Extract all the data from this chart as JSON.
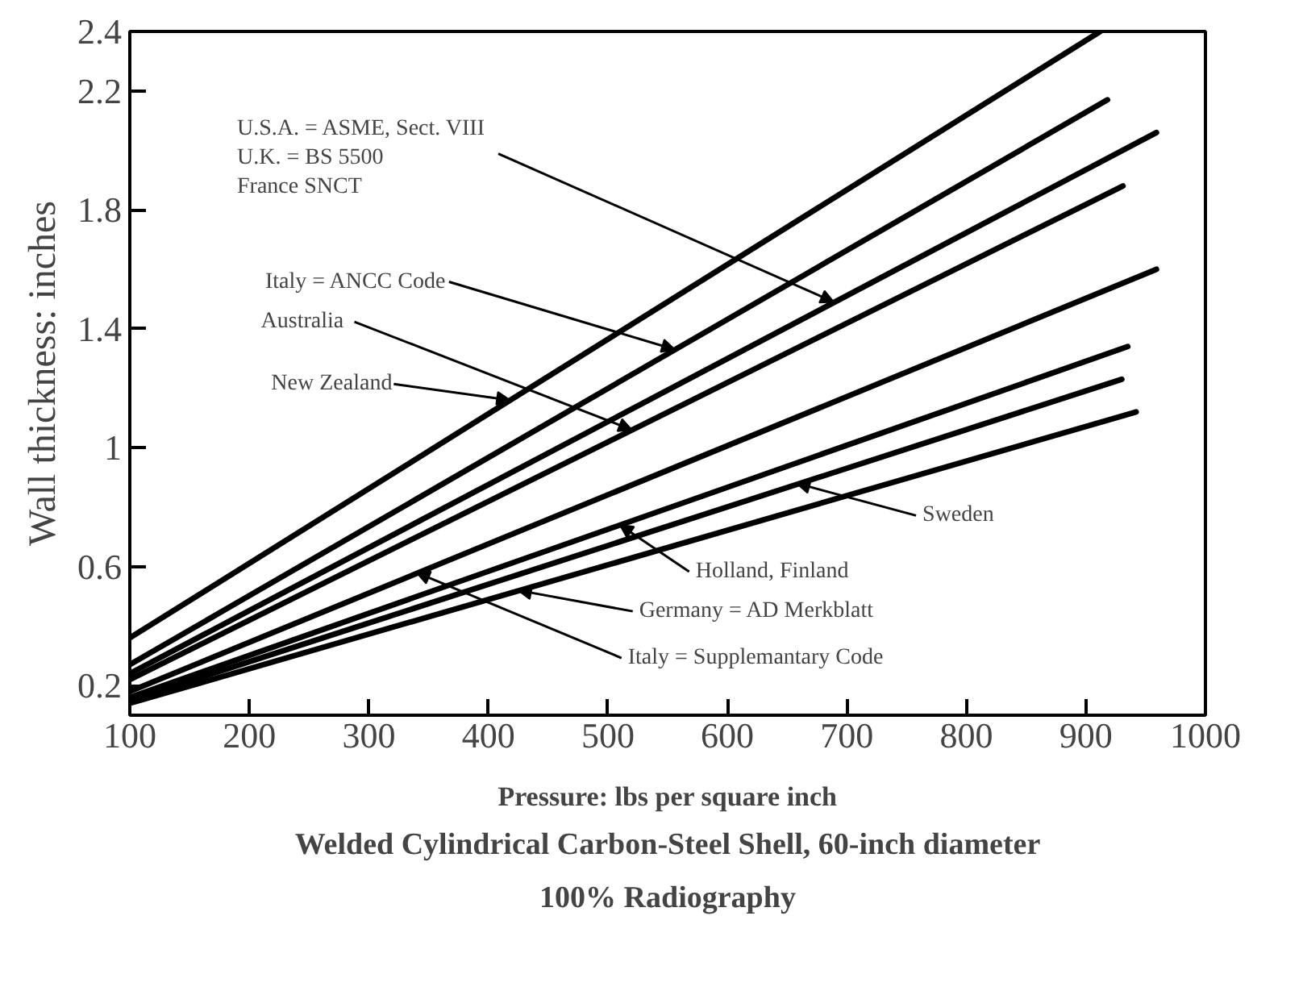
{
  "chart_data": {
    "type": "line",
    "title": "Welded Cylindrical Carbon-Steel Shell, 60-inch diameter",
    "subtitle": "100% Radiography",
    "xlabel": "Pressure: lbs per square inch",
    "ylabel": "Wall thickness: inches",
    "xlim": [
      100,
      1000
    ],
    "ylim": [
      0.1,
      2.4
    ],
    "xticks": [
      100,
      200,
      300,
      400,
      500,
      600,
      700,
      800,
      900,
      1000
    ],
    "yticks": [
      0.2,
      0.6,
      1.0,
      1.4,
      1.8,
      2.2,
      2.4
    ],
    "series": [
      {
        "color": "#000000",
        "x": [
          100,
          912
        ],
        "values": [
          0.36,
          2.4
        ]
      },
      {
        "color": "#000000",
        "x": [
          100,
          918
        ],
        "values": [
          0.27,
          2.17
        ]
      },
      {
        "color": "#000000",
        "x": [
          100,
          959
        ],
        "values": [
          0.24,
          2.06
        ]
      },
      {
        "color": "#000000",
        "x": [
          100,
          931
        ],
        "values": [
          0.22,
          1.88
        ]
      },
      {
        "color": "#000000",
        "x": [
          100,
          959
        ],
        "values": [
          0.18,
          1.6
        ]
      },
      {
        "color": "#000000",
        "x": [
          100,
          935
        ],
        "values": [
          0.16,
          1.34
        ]
      },
      {
        "color": "#000000",
        "x": [
          100,
          930
        ],
        "values": [
          0.15,
          1.23
        ]
      },
      {
        "color": "#000000",
        "x": [
          100,
          942
        ],
        "values": [
          0.14,
          1.12
        ]
      }
    ],
    "annotations": [
      {
        "text": "U.S.A. = ASME, Sect. VIII\nU.K. = BS 5500\nFrance SNCT",
        "x": 689,
        "y": 1.49
      },
      {
        "text": "Italy = ANCC Code",
        "x": 556,
        "y": 1.33
      },
      {
        "text": "Australia",
        "x": 520,
        "y": 1.06
      },
      {
        "text": "New Zealand",
        "x": 418,
        "y": 1.16
      },
      {
        "text": "Sweden",
        "x": 658,
        "y": 0.88
      },
      {
        "text": "Holland, Finland",
        "x": 510,
        "y": 0.74
      },
      {
        "text": "Germany = AD Merkblatt",
        "x": 425,
        "y": 0.52
      },
      {
        "text": "Italy = Supplemantary Code",
        "x": 340,
        "y": 0.58
      }
    ],
    "grid": false,
    "line_style": "solid"
  }
}
